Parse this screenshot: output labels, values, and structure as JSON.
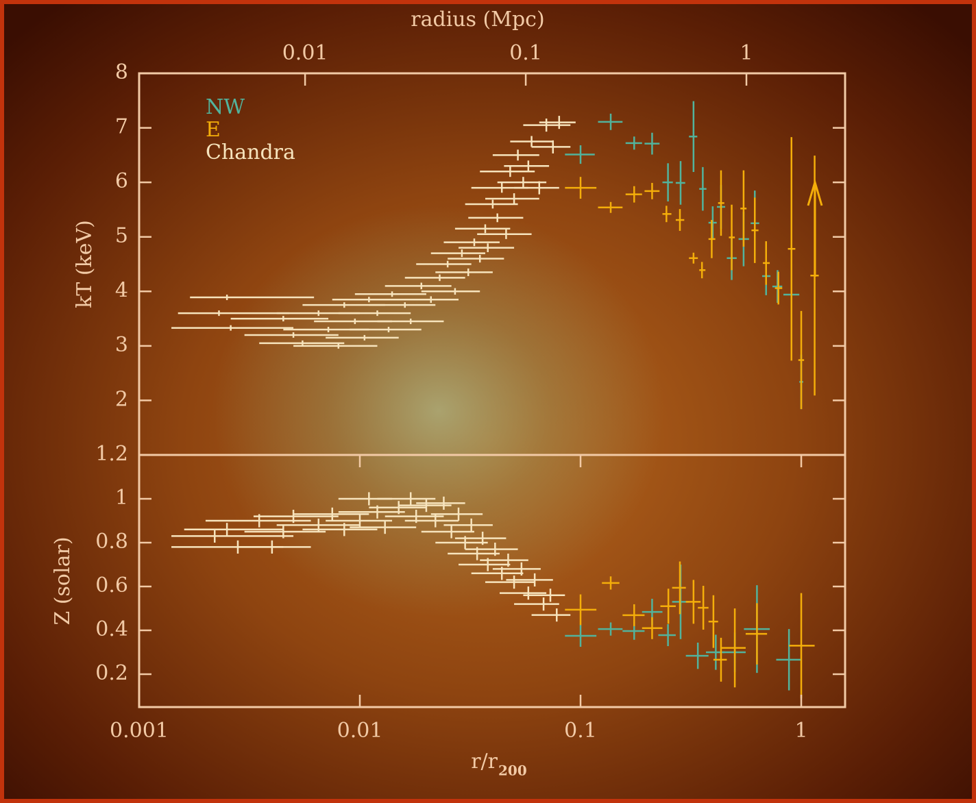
{
  "chart_data": [
    {
      "type": "errorbar",
      "x2label": "radius (Mpc)",
      "x2lim": [
        0.00177,
        2.8
      ],
      "x2ticks": [
        0.01,
        0.1,
        1
      ],
      "ylabel": "kT (keV)",
      "xlim": [
        0.001,
        1.58
      ],
      "xscale": "log",
      "ylim": [
        1,
        8
      ],
      "yticks": [
        2,
        3,
        4,
        5,
        6,
        7,
        8
      ],
      "legend": "upper left",
      "series": [
        {
          "name": "NW",
          "color": "#52b39c",
          "x": [
            0.1,
            0.137,
            0.175,
            0.211,
            0.249,
            0.284,
            0.325,
            0.358,
            0.397,
            0.433,
            0.484,
            0.548,
            0.616,
            0.693,
            0.781,
            0.903,
            1.0
          ],
          "x_low": [
            0.085,
            0.12,
            0.16,
            0.195,
            0.235,
            0.27,
            0.31,
            0.345,
            0.38,
            0.415,
            0.46,
            0.52,
            0.59,
            0.665,
            0.74,
            0.83,
            0.98
          ],
          "x_high": [
            0.116,
            0.155,
            0.19,
            0.228,
            0.262,
            0.298,
            0.338,
            0.372,
            0.414,
            0.452,
            0.51,
            0.58,
            0.645,
            0.725,
            0.82,
            0.98,
            1.02
          ],
          "values": [
            6.51,
            7.11,
            6.72,
            6.71,
            6.0,
            5.99,
            6.84,
            5.88,
            5.26,
            5.55,
            4.61,
            4.96,
            5.25,
            4.28,
            4.09,
            3.94,
            2.34
          ],
          "y_err": [
            0.17,
            0.15,
            0.12,
            0.2,
            0.35,
            0.4,
            0.65,
            0.4,
            0.3,
            0.4,
            0.4,
            0.5,
            0.6,
            0.35,
            0.3,
            0.55,
            0.5
          ]
        },
        {
          "name": "E",
          "color": "#f4ae0a",
          "x": [
            0.1,
            0.137,
            0.175,
            0.211,
            0.245,
            0.282,
            0.325,
            0.355,
            0.393,
            0.433,
            0.484,
            0.548,
            0.616,
            0.693,
            0.788,
            0.903,
            1.0,
            1.15
          ],
          "x_low": [
            0.085,
            0.12,
            0.16,
            0.195,
            0.235,
            0.27,
            0.31,
            0.345,
            0.38,
            0.42,
            0.47,
            0.53,
            0.595,
            0.67,
            0.76,
            0.87,
            0.97,
            1.1
          ],
          "x_high": [
            0.118,
            0.155,
            0.19,
            0.228,
            0.258,
            0.295,
            0.34,
            0.368,
            0.408,
            0.448,
            0.5,
            0.565,
            0.64,
            0.72,
            0.82,
            0.94,
            1.03,
            1.2
          ],
          "values": [
            5.9,
            5.54,
            5.78,
            5.84,
            5.42,
            5.31,
            4.61,
            4.39,
            4.96,
            5.62,
            4.99,
            5.52,
            5.12,
            4.52,
            4.06,
            4.78,
            2.74,
            4.29
          ],
          "y_err": [
            0.2,
            0.1,
            0.15,
            0.15,
            0.15,
            0.2,
            0.1,
            0.15,
            0.35,
            0.6,
            0.6,
            0.7,
            0.6,
            0.4,
            0.3,
            2.05,
            0.9,
            2.2
          ]
        },
        {
          "name": "Chandra",
          "color": "#f7e4bd",
          "x": [
            0.0025,
            0.0023,
            0.0026,
            0.0045,
            0.005,
            0.0055,
            0.0065,
            0.0072,
            0.008,
            0.0085,
            0.0095,
            0.0105,
            0.011,
            0.012,
            0.0135,
            0.014,
            0.016,
            0.017,
            0.019,
            0.021,
            0.023,
            0.025,
            0.027,
            0.029,
            0.031,
            0.033,
            0.035,
            0.037,
            0.038,
            0.04,
            0.042,
            0.044,
            0.046,
            0.048,
            0.05,
            0.052,
            0.055,
            0.058,
            0.06,
            0.065,
            0.07,
            0.075,
            0.08
          ],
          "x_low": [
            0.0017,
            0.0015,
            0.0014,
            0.0026,
            0.003,
            0.0035,
            0.0042,
            0.0045,
            0.005,
            0.0055,
            0.0062,
            0.007,
            0.0075,
            0.008,
            0.009,
            0.0095,
            0.011,
            0.012,
            0.013,
            0.015,
            0.016,
            0.018,
            0.019,
            0.021,
            0.022,
            0.024,
            0.025,
            0.027,
            0.028,
            0.03,
            0.031,
            0.032,
            0.034,
            0.035,
            0.037,
            0.04,
            0.042,
            0.045,
            0.048,
            0.05,
            0.055,
            0.06,
            0.065
          ],
          "x_high": [
            0.0062,
            0.0048,
            0.005,
            0.0072,
            0.008,
            0.0085,
            0.01,
            0.011,
            0.012,
            0.013,
            0.014,
            0.015,
            0.016,
            0.017,
            0.019,
            0.02,
            0.022,
            0.024,
            0.026,
            0.028,
            0.03,
            0.032,
            0.035,
            0.037,
            0.04,
            0.043,
            0.045,
            0.048,
            0.05,
            0.052,
            0.055,
            0.058,
            0.06,
            0.062,
            0.065,
            0.065,
            0.07,
            0.072,
            0.075,
            0.08,
            0.09,
            0.09,
            0.095
          ],
          "values": [
            3.89,
            3.6,
            3.33,
            3.5,
            3.2,
            3.05,
            3.6,
            3.3,
            3.0,
            3.75,
            3.45,
            3.15,
            3.85,
            3.6,
            3.3,
            3.95,
            3.75,
            3.45,
            4.1,
            3.85,
            4.25,
            4.5,
            4.0,
            4.7,
            4.35,
            4.9,
            4.6,
            5.15,
            4.8,
            5.6,
            5.35,
            5.9,
            5.05,
            6.2,
            5.7,
            6.5,
            6.0,
            6.3,
            6.75,
            5.9,
            7.05,
            6.65,
            7.1
          ],
          "y_err": [
            0.05,
            0.05,
            0.05,
            0.05,
            0.05,
            0.05,
            0.05,
            0.05,
            0.05,
            0.05,
            0.05,
            0.05,
            0.05,
            0.05,
            0.05,
            0.05,
            0.05,
            0.05,
            0.06,
            0.06,
            0.06,
            0.06,
            0.06,
            0.07,
            0.07,
            0.07,
            0.07,
            0.08,
            0.08,
            0.08,
            0.08,
            0.09,
            0.09,
            0.1,
            0.1,
            0.1,
            0.1,
            0.1,
            0.1,
            0.12,
            0.12,
            0.12,
            0.12
          ]
        }
      ]
    },
    {
      "type": "errorbar",
      "ylabel": "Z (solar)",
      "xlabel": "r/r",
      "xlabel_subscript": "200",
      "xlim": [
        0.001,
        1.58
      ],
      "xscale": "log",
      "xticks": [
        0.001,
        0.01,
        0.1,
        1
      ],
      "ylim": [
        0.05,
        1.2
      ],
      "yticks": [
        0.2,
        0.4,
        0.6,
        0.8,
        1,
        1.2
      ],
      "series": [
        {
          "name": "NW",
          "color": "#52b39c",
          "x": [
            0.1,
            0.137,
            0.175,
            0.211,
            0.249,
            0.284,
            0.34,
            0.41,
            0.5,
            0.63,
            0.88
          ],
          "x_low": [
            0.085,
            0.12,
            0.155,
            0.19,
            0.225,
            0.26,
            0.3,
            0.37,
            0.44,
            0.55,
            0.77
          ],
          "x_high": [
            0.118,
            0.155,
            0.195,
            0.235,
            0.27,
            0.31,
            0.38,
            0.45,
            0.56,
            0.72,
            1.0
          ],
          "values": [
            0.375,
            0.406,
            0.397,
            0.484,
            0.378,
            0.53,
            0.284,
            0.3,
            0.3,
            0.406,
            0.266
          ],
          "y_err": [
            0.05,
            0.03,
            0.04,
            0.06,
            0.05,
            0.17,
            0.06,
            0.08,
            0.09,
            0.2,
            0.14
          ]
        },
        {
          "name": "E",
          "color": "#f4ae0a",
          "x": [
            0.1,
            0.137,
            0.175,
            0.211,
            0.25,
            0.282,
            0.325,
            0.36,
            0.4,
            0.433,
            0.5,
            0.63,
            1.0
          ],
          "x_low": [
            0.085,
            0.125,
            0.155,
            0.19,
            0.23,
            0.26,
            0.3,
            0.34,
            0.38,
            0.4,
            0.43,
            0.56,
            0.88
          ],
          "x_high": [
            0.118,
            0.15,
            0.195,
            0.235,
            0.27,
            0.3,
            0.35,
            0.38,
            0.42,
            0.46,
            0.56,
            0.7,
            1.15
          ],
          "values": [
            0.494,
            0.616,
            0.469,
            0.41,
            0.51,
            0.594,
            0.53,
            0.503,
            0.44,
            0.266,
            0.32,
            0.384,
            0.33
          ],
          "y_err": [
            0.07,
            0.03,
            0.05,
            0.05,
            0.08,
            0.12,
            0.1,
            0.1,
            0.12,
            0.1,
            0.18,
            0.14,
            0.24
          ]
        },
        {
          "name": "Chandra",
          "color": "#f7e4bd",
          "x": [
            0.0025,
            0.0022,
            0.0028,
            0.004,
            0.0035,
            0.0045,
            0.005,
            0.0065,
            0.0075,
            0.0085,
            0.01,
            0.011,
            0.012,
            0.013,
            0.015,
            0.017,
            0.018,
            0.02,
            0.022,
            0.024,
            0.026,
            0.028,
            0.03,
            0.032,
            0.034,
            0.036,
            0.038,
            0.041,
            0.044,
            0.047,
            0.05,
            0.054,
            0.058,
            0.062,
            0.068,
            0.073,
            0.078
          ],
          "x_low": [
            0.0016,
            0.0014,
            0.0014,
            0.0028,
            0.002,
            0.003,
            0.0033,
            0.0042,
            0.005,
            0.0055,
            0.007,
            0.008,
            0.008,
            0.009,
            0.011,
            0.012,
            0.013,
            0.015,
            0.016,
            0.018,
            0.019,
            0.021,
            0.022,
            0.024,
            0.025,
            0.027,
            0.028,
            0.03,
            0.032,
            0.035,
            0.037,
            0.04,
            0.043,
            0.046,
            0.05,
            0.055,
            0.06
          ],
          "x_high": [
            0.0045,
            0.005,
            0.0045,
            0.006,
            0.006,
            0.007,
            0.008,
            0.01,
            0.011,
            0.012,
            0.014,
            0.014,
            0.016,
            0.018,
            0.02,
            0.022,
            0.024,
            0.026,
            0.028,
            0.03,
            0.033,
            0.036,
            0.038,
            0.04,
            0.043,
            0.046,
            0.048,
            0.052,
            0.055,
            0.058,
            0.062,
            0.066,
            0.07,
            0.075,
            0.08,
            0.085,
            0.09
          ],
          "values": [
            0.86,
            0.83,
            0.78,
            0.78,
            0.9,
            0.85,
            0.92,
            0.88,
            0.93,
            0.86,
            0.9,
            1.0,
            0.94,
            0.87,
            0.96,
            1.0,
            0.92,
            0.97,
            0.9,
            0.98,
            0.85,
            0.93,
            0.8,
            0.88,
            0.75,
            0.82,
            0.7,
            0.77,
            0.66,
            0.72,
            0.62,
            0.68,
            0.57,
            0.63,
            0.52,
            0.56,
            0.47
          ],
          "y_err": [
            0.03,
            0.03,
            0.03,
            0.03,
            0.03,
            0.03,
            0.03,
            0.03,
            0.03,
            0.03,
            0.03,
            0.03,
            0.03,
            0.03,
            0.03,
            0.03,
            0.03,
            0.03,
            0.03,
            0.03,
            0.03,
            0.03,
            0.03,
            0.03,
            0.03,
            0.03,
            0.03,
            0.03,
            0.03,
            0.03,
            0.03,
            0.03,
            0.03,
            0.03,
            0.03,
            0.03,
            0.03
          ]
        }
      ]
    }
  ]
}
